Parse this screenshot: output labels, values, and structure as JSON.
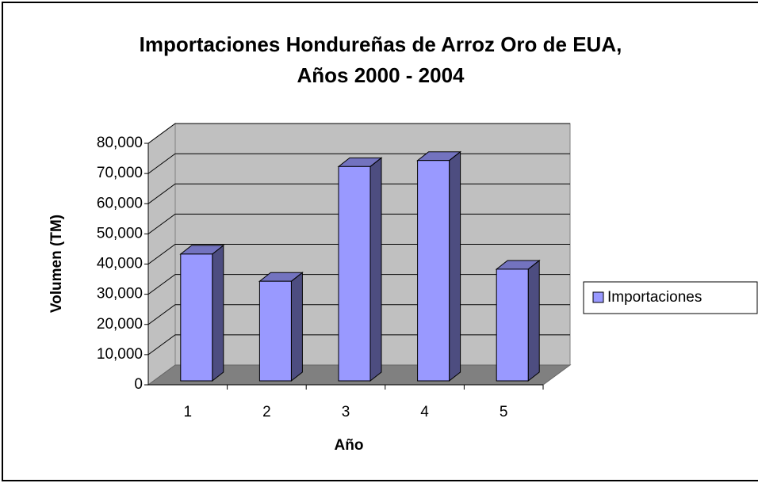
{
  "chart_data": {
    "type": "bar",
    "title": [
      "Importaciones Hondureñas de Arroz Oro de EUA,",
      "Años 2000 - 2004"
    ],
    "xlabel": "Año",
    "ylabel": "Volumen (TM)",
    "categories": [
      "1",
      "2",
      "3",
      "4",
      "5"
    ],
    "series": [
      {
        "name": "Importaciones",
        "color": "#9999ff",
        "values": [
          42000,
          33000,
          71000,
          73000,
          37000
        ]
      }
    ],
    "ylim": [
      0,
      80000
    ],
    "yticks": [
      0,
      {
        "value": 10000,
        "label": "10,000"
      },
      {
        "value": 20000,
        "label": "20,000"
      },
      {
        "value": 30000,
        "label": "30,000"
      },
      {
        "value": 40000,
        "label": "40,000"
      },
      {
        "value": 50000,
        "label": "50,000"
      },
      {
        "value": 60000,
        "label": "60,000"
      },
      {
        "value": 70000,
        "label": "70,000"
      },
      {
        "value": 80000,
        "label": "80,000"
      }
    ],
    "grid": true,
    "legend": "right"
  }
}
